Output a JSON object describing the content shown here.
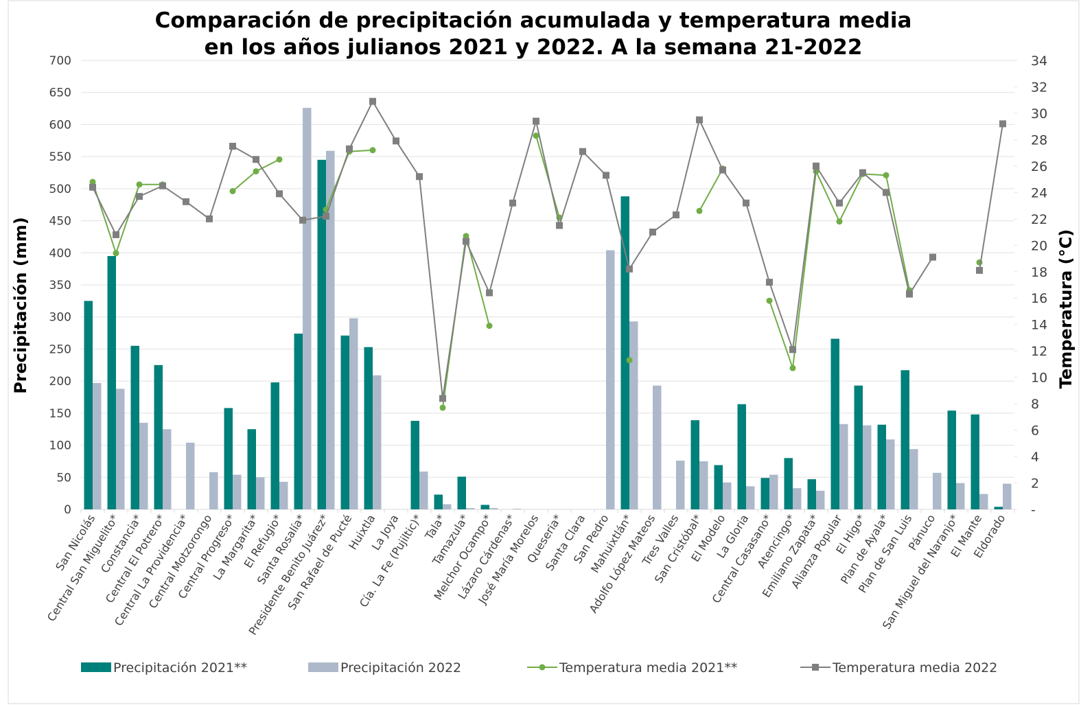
{
  "chart_data": {
    "type": "bar_line",
    "title": [
      "Comparación de precipitación acumulada y temperatura media",
      "en los años julianos 2021 y 2022. A la semana 21-2022"
    ],
    "ylabel": "Precipitación (mm)",
    "y2label": "Temperatura (°C)",
    "categories": [
      "San Nicolás",
      "Central San Miguelito*",
      "Constancia*",
      "Central El Potrero*",
      "Central La Providencia*",
      "Central Motzorongo",
      "Central Progreso*",
      "La Margarita*",
      "El Refugio*",
      "Santa Rosalía*",
      "Presidente Benito Juárez*",
      "San Rafael de Pucté",
      "Huixtla",
      "La Joya",
      "Cía. La Fe (Pujiltic)*",
      "Tala*",
      "Tamazula*",
      "Melchor Ocampo*",
      "Lázaro Cárdenas*",
      "José María Morelos",
      "Queseria*",
      "Santa Clara",
      "San Pedro",
      "Mahuixtlán*",
      "Adolfo López Mateos",
      "Tres Valles",
      "San Cristóbal*",
      "El Modelo",
      "La Gloria",
      "Central Casasano*",
      "Atencingo*",
      "Emiliano Zapata*",
      "Alianza Popular",
      "El Higo*",
      "Plan de Ayala*",
      "Plan de San Luis",
      "Pánuco",
      "San Miguel del Naranjo*",
      "El Mante",
      "Eldorado"
    ],
    "series": [
      {
        "name": "Precipitación 2021**",
        "type": "bar",
        "color": "#00807a",
        "values": [
          325,
          395,
          255,
          225,
          null,
          null,
          158,
          125,
          198,
          274,
          545,
          271,
          253,
          null,
          138,
          23,
          51,
          7,
          null,
          null,
          null,
          null,
          null,
          488,
          null,
          null,
          139,
          69,
          164,
          49,
          80,
          47,
          266,
          193,
          132,
          217,
          null,
          154,
          148,
          4
        ]
      },
      {
        "name": "Precipitación 2022",
        "type": "bar",
        "color": "#adb9ca",
        "values": [
          197,
          188,
          135,
          125,
          104,
          58,
          54,
          50,
          43,
          626,
          559,
          298,
          209,
          null,
          59,
          8,
          2,
          2,
          1,
          null,
          null,
          null,
          404,
          293,
          193,
          76,
          75,
          42,
          36,
          54,
          33,
          29,
          133,
          131,
          109,
          94,
          57,
          41,
          24,
          40
        ]
      },
      {
        "name": "Temperatura media 2021**",
        "type": "line",
        "axis": "y2",
        "marker": "circle",
        "color": "#70ad47",
        "values": [
          24.8,
          19.4,
          24.6,
          24.6,
          null,
          null,
          24.1,
          25.6,
          26.5,
          null,
          22.7,
          27.1,
          27.2,
          null,
          null,
          7.7,
          20.7,
          13.9,
          null,
          28.3,
          22.1,
          null,
          null,
          11.3,
          null,
          null,
          22.6,
          25.8,
          null,
          15.8,
          10.7,
          25.6,
          21.8,
          25.4,
          25.3,
          16.6,
          null,
          null,
          18.7,
          null
        ]
      },
      {
        "name": "Temperatura media 2022",
        "type": "line",
        "axis": "y2",
        "marker": "square",
        "color": "#7f7f7f",
        "values": [
          24.4,
          20.8,
          23.7,
          24.5,
          23.3,
          22.0,
          27.5,
          26.5,
          23.9,
          21.9,
          22.2,
          27.3,
          30.9,
          27.9,
          25.2,
          8.4,
          20.3,
          16.4,
          23.2,
          29.4,
          21.5,
          27.1,
          25.3,
          18.2,
          21.0,
          22.3,
          29.5,
          25.7,
          23.2,
          17.2,
          12.1,
          26.0,
          23.2,
          25.5,
          24.0,
          16.3,
          19.1,
          null,
          18.1,
          29.2
        ]
      }
    ],
    "ylim": [
      0,
      700
    ],
    "yticks": [
      0,
      50,
      100,
      150,
      200,
      250,
      300,
      350,
      400,
      450,
      500,
      550,
      600,
      650,
      700
    ],
    "y2lim": [
      0,
      34
    ],
    "y2ticks": [
      {
        "value": 0,
        "label": "-"
      },
      2,
      4,
      6,
      8,
      10,
      12,
      14,
      16,
      18,
      20,
      22,
      24,
      26,
      28,
      30,
      32,
      34
    ],
    "grid": true,
    "legend": "bottom"
  }
}
